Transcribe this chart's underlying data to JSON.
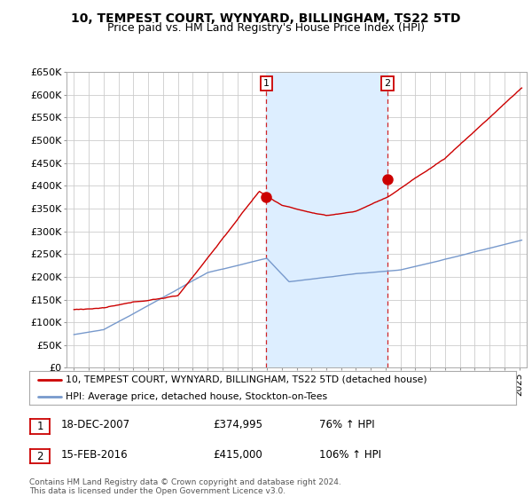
{
  "title": "10, TEMPEST COURT, WYNYARD, BILLINGHAM, TS22 5TD",
  "subtitle": "Price paid vs. HM Land Registry's House Price Index (HPI)",
  "title_fontsize": 10,
  "subtitle_fontsize": 9,
  "ylabel_ticks": [
    "£0",
    "£50K",
    "£100K",
    "£150K",
    "£200K",
    "£250K",
    "£300K",
    "£350K",
    "£400K",
    "£450K",
    "£500K",
    "£550K",
    "£600K",
    "£650K"
  ],
  "ylim": [
    0,
    650000
  ],
  "xlim_start": 1994.5,
  "xlim_end": 2025.5,
  "background_color": "#ffffff",
  "plot_bg_color": "#ffffff",
  "grid_color": "#cccccc",
  "red_line_color": "#cc0000",
  "blue_line_color": "#7799cc",
  "span_color": "#ddeeff",
  "sale1_x": 2007.96,
  "sale1_y": 374995,
  "sale2_x": 2016.12,
  "sale2_y": 415000,
  "vline1_x": 2007.96,
  "vline2_x": 2016.12,
  "annotation1_date": "18-DEC-2007",
  "annotation1_price": "£374,995",
  "annotation1_hpi": "76% ↑ HPI",
  "annotation2_date": "15-FEB-2016",
  "annotation2_price": "£415,000",
  "annotation2_hpi": "106% ↑ HPI",
  "legend_line1": "10, TEMPEST COURT, WYNYARD, BILLINGHAM, TS22 5TD (detached house)",
  "legend_line2": "HPI: Average price, detached house, Stockton-on-Tees",
  "footnote": "Contains HM Land Registry data © Crown copyright and database right 2024.\nThis data is licensed under the Open Government Licence v3.0."
}
